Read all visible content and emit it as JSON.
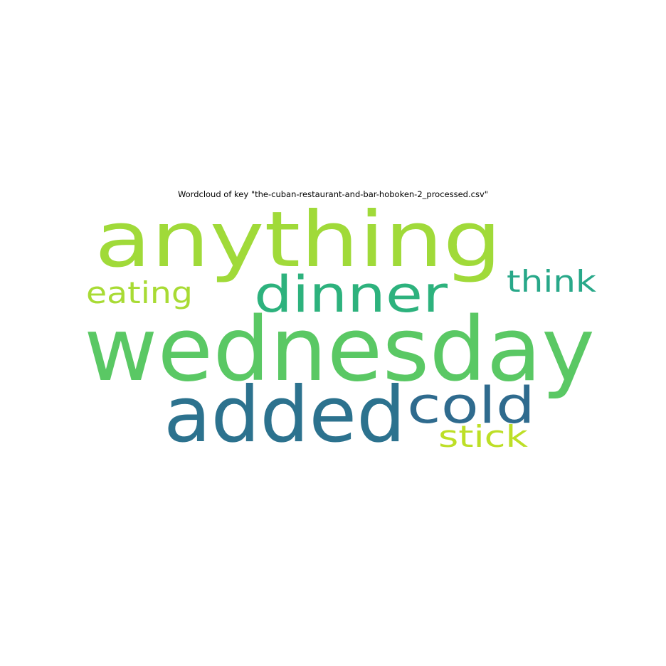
{
  "chart_data": {
    "type": "wordcloud",
    "title": "Wordcloud of key \"the-cuban-restaurant-and-bar-hoboken-2_processed.csv\"",
    "words": [
      {
        "text": "wednesday",
        "color": "#5ac864"
      },
      {
        "text": "anything",
        "color": "#a0da39"
      },
      {
        "text": "added",
        "color": "#2c728e"
      },
      {
        "text": "dinner",
        "color": "#2db27d"
      },
      {
        "text": "cold",
        "color": "#2f6b8e"
      },
      {
        "text": "eating",
        "color": "#a8db34"
      },
      {
        "text": "think",
        "color": "#28a889"
      },
      {
        "text": "stick",
        "color": "#bddf26"
      }
    ]
  }
}
